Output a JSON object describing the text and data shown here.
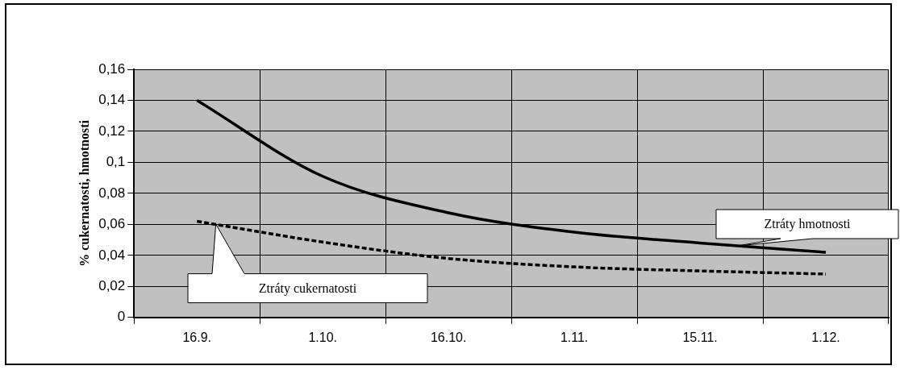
{
  "chart_data": {
    "type": "line",
    "ylabel": "% cukernatosti, hmotnosti",
    "categories": [
      "16.9.",
      "1.10.",
      "16.10.",
      "1.11.",
      "15.11.",
      "1.12."
    ],
    "series": [
      {
        "name": "Ztráty hmotnosti",
        "color": "#000000",
        "line_style": "solid",
        "values": [
          0.14,
          0.091,
          0.0675,
          0.055,
          0.048,
          0.042
        ]
      },
      {
        "name": "Ztráty cukernatosti",
        "color": "#000000",
        "line_style": "dashed",
        "values": [
          0.062,
          0.0486,
          0.038,
          0.0326,
          0.03,
          0.028
        ]
      }
    ],
    "ylim": [
      0,
      0.16
    ],
    "yticks": [
      0,
      {
        "value": 0.02,
        "label": "0,02"
      },
      {
        "value": 0.04,
        "label": "0,04"
      },
      {
        "value": 0.06,
        "label": "0,06"
      },
      {
        "value": 0.08,
        "label": "0,08"
      },
      {
        "value": 0.1,
        "label": "0,1"
      },
      {
        "value": 0.12,
        "label": "0,12"
      },
      {
        "value": 0.14,
        "label": "0,14"
      },
      {
        "value": 0.16,
        "label": "0,16"
      }
    ],
    "grid": true,
    "legend": false,
    "marker": "none"
  }
}
